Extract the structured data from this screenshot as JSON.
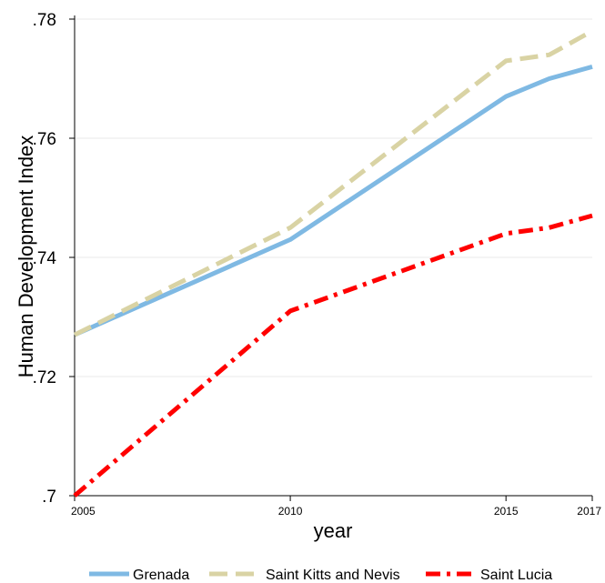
{
  "chart_data": {
    "type": "line",
    "title": "",
    "xlabel": "year",
    "ylabel": "Human Development Index",
    "xlim": [
      2005,
      2017
    ],
    "ylim": [
      0.7,
      0.78
    ],
    "x_ticks": [
      2005,
      2010,
      2015,
      2017
    ],
    "x_tick_labels": [
      "2005",
      "2010",
      "2015",
      "2017"
    ],
    "y_ticks": [
      0.7,
      0.72,
      0.74,
      0.76,
      0.78
    ],
    "y_tick_labels": [
      ".7",
      ".72",
      ".74",
      ".76",
      ".78"
    ],
    "grid": "horizontal",
    "legend_position": "bottom",
    "x": [
      2005,
      2010,
      2015,
      2016,
      2017
    ],
    "series": [
      {
        "name": "Grenada",
        "values": [
          0.727,
          0.743,
          0.767,
          0.77,
          0.772
        ],
        "color": "#7fb9e3",
        "style": "solid"
      },
      {
        "name": "Saint Kitts and Nevis",
        "values": [
          0.727,
          0.745,
          0.773,
          0.774,
          0.778
        ],
        "color": "#d9d3a4",
        "style": "longdash"
      },
      {
        "name": "Saint Lucia",
        "values": [
          0.7,
          0.731,
          0.744,
          0.745,
          0.747
        ],
        "color": "#ff0000",
        "style": "dashdot"
      }
    ]
  }
}
